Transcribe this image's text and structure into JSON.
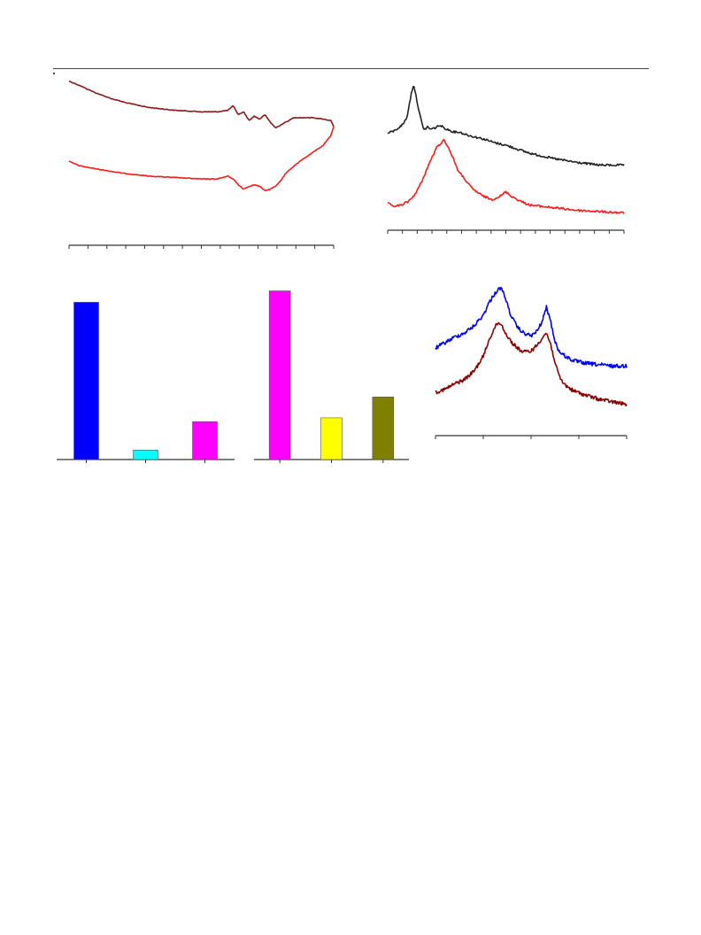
{
  "page": {
    "header_rule": true
  },
  "chart_data": [
    {
      "type": "line",
      "panel": "top-left",
      "xlim": [
        0,
        100
      ],
      "ylim": [
        0,
        10
      ],
      "x_ticks": 15,
      "series": [
        {
          "color": "#8b1a1a",
          "x": [
            0,
            4,
            10,
            16,
            22,
            30,
            40,
            50,
            56,
            60,
            62,
            64,
            66,
            68,
            70,
            72,
            74,
            76,
            78,
            80,
            82,
            85,
            88,
            92,
            96,
            99,
            100
          ],
          "y": [
            9.6,
            9.3,
            8.8,
            8.4,
            8.1,
            7.8,
            7.6,
            7.5,
            7.5,
            7.6,
            7.9,
            7.3,
            7.5,
            6.9,
            7.2,
            7.0,
            7.3,
            6.8,
            6.4,
            6.6,
            6.8,
            7.1,
            7.1,
            7.1,
            7.0,
            6.9,
            6.5
          ]
        },
        {
          "color": "#ff1a1a",
          "x": [
            0,
            4,
            10,
            20,
            30,
            40,
            50,
            56,
            60,
            62,
            64,
            66,
            68,
            70,
            72,
            74,
            76,
            78,
            80,
            82,
            85,
            88,
            92,
            96,
            99,
            100
          ],
          "y": [
            4.1,
            3.8,
            3.6,
            3.3,
            3.1,
            3.0,
            2.9,
            2.9,
            3.1,
            2.9,
            2.5,
            2.2,
            2.4,
            2.5,
            2.4,
            2.1,
            2.2,
            2.4,
            2.8,
            3.3,
            3.8,
            4.2,
            4.7,
            5.2,
            5.9,
            6.5
          ]
        }
      ]
    },
    {
      "type": "line",
      "panel": "top-right",
      "xlim": [
        0,
        100
      ],
      "ylim": [
        0,
        10
      ],
      "x_ticks": 17,
      "series": [
        {
          "color": "#222222",
          "x": [
            0,
            3,
            6,
            8,
            9,
            10,
            11,
            12,
            13,
            14,
            15,
            16,
            17,
            18,
            20,
            22,
            25,
            28,
            30,
            35,
            40,
            45,
            50,
            60,
            70,
            80,
            90,
            100
          ],
          "y": [
            6.3,
            6.5,
            6.9,
            7.4,
            8.3,
            9.3,
            10.0,
            9.1,
            8.2,
            7.4,
            6.7,
            6.6,
            6.8,
            6.6,
            6.7,
            6.9,
            6.6,
            6.4,
            6.4,
            6.1,
            5.9,
            5.6,
            5.4,
            4.8,
            4.4,
            4.1,
            3.9,
            3.9
          ]
        },
        {
          "color": "#ff1a1a",
          "x": [
            0,
            3,
            6,
            9,
            12,
            15,
            18,
            21,
            24,
            26,
            28,
            30,
            32,
            34,
            36,
            40,
            44,
            48,
            50,
            52,
            56,
            60,
            70,
            80,
            90,
            100
          ],
          "y": [
            1.0,
            0.8,
            0.9,
            1.2,
            1.8,
            2.9,
            4.2,
            5.3,
            5.8,
            5.1,
            4.3,
            3.4,
            3.0,
            2.5,
            2.1,
            1.6,
            1.3,
            1.6,
            1.9,
            1.6,
            1.2,
            0.9,
            0.7,
            0.5,
            0.4,
            0.3
          ]
        }
      ]
    },
    {
      "type": "bar",
      "panel": "bottom-left-a",
      "ylim": [
        0,
        100
      ],
      "values": [
        83,
        5,
        20
      ],
      "colors": [
        "#0000ff",
        "#00ffff",
        "#ff00ff"
      ]
    },
    {
      "type": "bar",
      "panel": "bottom-left-b",
      "ylim": [
        0,
        100
      ],
      "values": [
        89,
        22,
        33
      ],
      "colors": [
        "#ff00ff",
        "#ffff00",
        "#808000"
      ]
    },
    {
      "type": "line",
      "panel": "bottom-right",
      "xlim": [
        0,
        100
      ],
      "ylim": [
        0,
        10
      ],
      "x_ticks": 5,
      "series": [
        {
          "color": "#0000ff",
          "x": [
            0,
            5,
            10,
            15,
            20,
            25,
            28,
            31,
            34,
            36,
            38,
            40,
            43,
            46,
            50,
            53,
            56,
            58,
            60,
            62,
            64,
            66,
            68,
            72,
            78,
            85,
            92,
            100
          ],
          "y": [
            5.6,
            6.0,
            6.4,
            6.7,
            7.2,
            8.0,
            8.9,
            9.6,
            10.0,
            9.5,
            8.6,
            7.8,
            7.1,
            6.7,
            6.5,
            6.8,
            7.6,
            8.6,
            7.7,
            6.4,
            5.5,
            5.2,
            5.0,
            4.7,
            4.5,
            4.4,
            4.3,
            4.3
          ]
        },
        {
          "color": "#8b0000",
          "x": [
            0,
            5,
            10,
            15,
            20,
            25,
            28,
            31,
            33,
            35,
            37,
            40,
            43,
            46,
            50,
            53,
            56,
            58,
            60,
            62,
            64,
            66,
            68,
            72,
            78,
            85,
            92,
            100
          ],
          "y": [
            2.4,
            2.6,
            3.0,
            3.3,
            3.9,
            5.0,
            6.2,
            7.1,
            7.5,
            7.2,
            6.6,
            6.0,
            5.6,
            5.3,
            5.4,
            5.8,
            6.4,
            6.7,
            6.0,
            4.9,
            3.8,
            3.2,
            2.9,
            2.5,
            2.2,
            1.9,
            1.7,
            1.5
          ]
        }
      ]
    }
  ]
}
